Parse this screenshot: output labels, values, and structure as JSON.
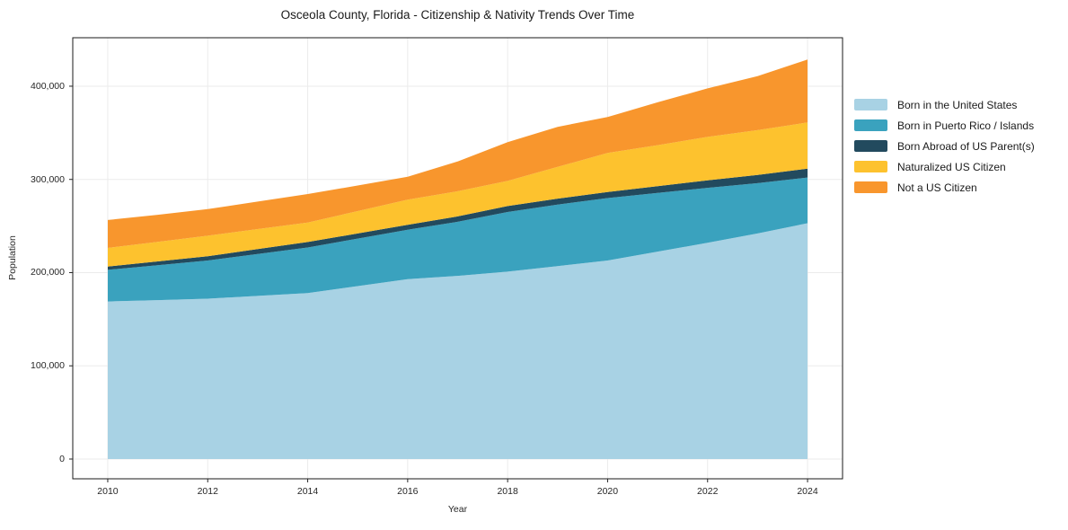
{
  "chart_data": {
    "type": "area",
    "stacked": true,
    "title": "Osceola County, Florida - Citizenship & Nativity Trends Over Time",
    "xlabel": "Year",
    "ylabel": "Population",
    "x": [
      2010,
      2011,
      2012,
      2013,
      2014,
      2015,
      2016,
      2017,
      2018,
      2019,
      2020,
      2021,
      2022,
      2023,
      2024
    ],
    "series": [
      {
        "name": "Born in the United States",
        "color": "#a8d2e4",
        "values": [
          169000,
          170500,
          172000,
          175000,
          178000,
          185500,
          193000,
          196500,
          201000,
          207000,
          213000,
          222500,
          232000,
          242000,
          253000
        ]
      },
      {
        "name": "Born in Puerto Rico / Islands",
        "color": "#3aa2be",
        "values": [
          34000,
          37500,
          41000,
          45000,
          49000,
          51000,
          53000,
          58000,
          64000,
          66000,
          67000,
          63000,
          59000,
          54000,
          49000
        ]
      },
      {
        "name": "Born Abroad of US Parent(s)",
        "color": "#224a5e",
        "values": [
          3500,
          4000,
          4600,
          5200,
          5800,
          5500,
          5300,
          5800,
          6400,
          6400,
          6400,
          7200,
          8100,
          8800,
          9600
        ]
      },
      {
        "name": "Naturalized US Citizen",
        "color": "#fdc22e",
        "values": [
          20000,
          21000,
          22000,
          21500,
          21000,
          24000,
          27000,
          27000,
          27000,
          34000,
          42000,
          44000,
          46500,
          48000,
          49500
        ]
      },
      {
        "name": "Not a US Citizen",
        "color": "#f8962d",
        "values": [
          30000,
          29000,
          28500,
          29500,
          30500,
          27500,
          24500,
          32000,
          41500,
          43000,
          38500,
          46000,
          52000,
          58000,
          67500
        ]
      }
    ],
    "xlim": [
      2009.3,
      2024.7
    ],
    "ylim": [
      -21200,
      452000
    ],
    "xticks": [
      {
        "value": 2010,
        "label": "2010"
      },
      {
        "value": 2012,
        "label": "2012"
      },
      {
        "value": 2014,
        "label": "2014"
      },
      {
        "value": 2016,
        "label": "2016"
      },
      {
        "value": 2018,
        "label": "2018"
      },
      {
        "value": 2020,
        "label": "2020"
      },
      {
        "value": 2022,
        "label": "2022"
      },
      {
        "value": 2024,
        "label": "2024"
      }
    ],
    "yticks": [
      {
        "value": 0,
        "label": "0"
      },
      {
        "value": 100000,
        "label": "100,000"
      },
      {
        "value": 200000,
        "label": "200,000"
      },
      {
        "value": 300000,
        "label": "300,000"
      },
      {
        "value": 400000,
        "label": "400,000"
      }
    ],
    "grid": true,
    "legend_position": "right",
    "colors": {
      "grid": "#ebebeb",
      "spine": "#1a1a1a",
      "tick": "#262626",
      "background": "#ffffff"
    }
  }
}
